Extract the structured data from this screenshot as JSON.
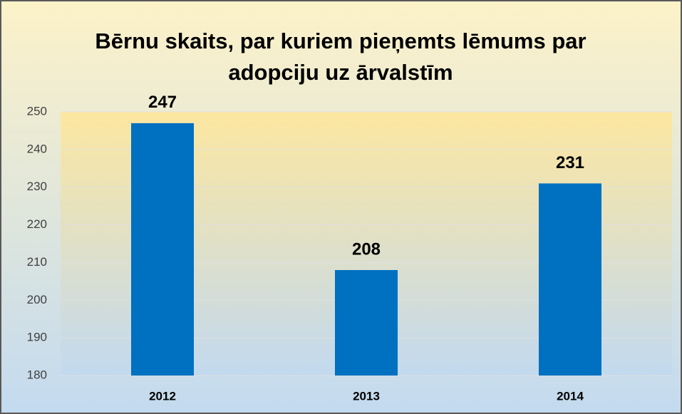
{
  "chart_data": {
    "type": "bar",
    "title": "Bērnu skaits, par kuriem pieņemts lēmums par adopciju uz ārvalstīm",
    "categories": [
      "2012",
      "2013",
      "2014"
    ],
    "values": [
      247,
      208,
      231
    ],
    "color": "#0070c0",
    "ylim": [
      180,
      250
    ],
    "yticks": [
      180,
      190,
      200,
      210,
      220,
      230,
      240,
      250
    ],
    "grid": true
  }
}
